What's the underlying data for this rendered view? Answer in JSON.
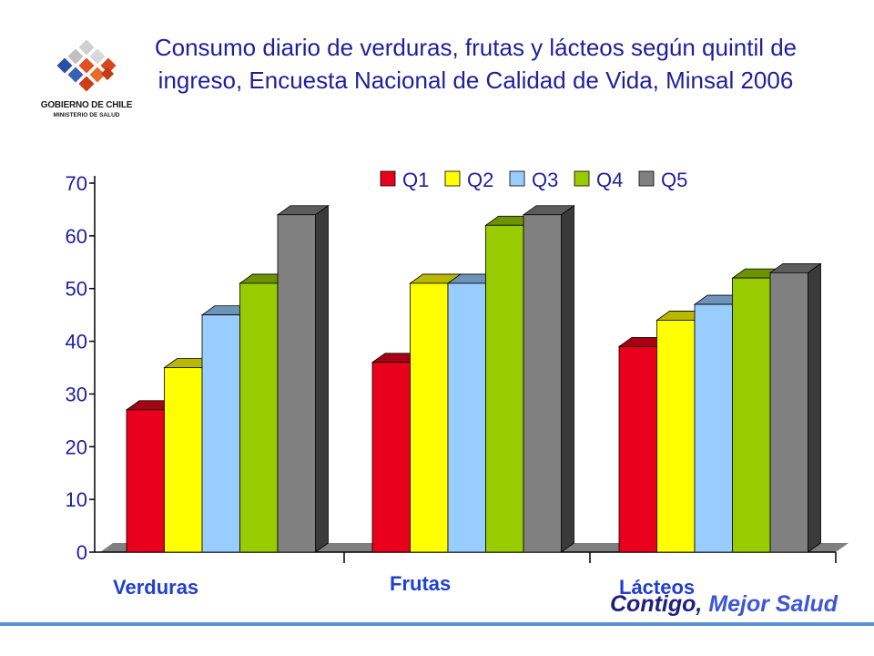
{
  "title": "Consumo diario de verduras, frutas y lácteos según quintil de ingreso, Encuesta Nacional de Calidad de Vida, Minsal 2006",
  "logo": {
    "line1": "GOBIERNO DE CHILE",
    "line2": "MINISTERIO DE SALUD"
  },
  "slogan": {
    "part1": "Contigo,",
    "part2": "Mejor Salud"
  },
  "chart_data": {
    "type": "bar",
    "title": "Consumo diario de verduras, frutas y lácteos según quintil de ingreso, Encuesta Nacional de Calidad de Vida, Minsal 2006",
    "categories": [
      "Verduras",
      "Frutas",
      "Lácteos"
    ],
    "series": [
      {
        "name": "Q1",
        "color": "#e8001c",
        "values": [
          27,
          36,
          39
        ]
      },
      {
        "name": "Q2",
        "color": "#ffff00",
        "values": [
          35,
          51,
          44
        ]
      },
      {
        "name": "Q3",
        "color": "#99ccff",
        "values": [
          45,
          51,
          47
        ]
      },
      {
        "name": "Q4",
        "color": "#99cc00",
        "values": [
          51,
          62,
          52
        ]
      },
      {
        "name": "Q5",
        "color": "#808080",
        "values": [
          64,
          64,
          53
        ]
      }
    ],
    "ylim": [
      0,
      70
    ],
    "yticks": [
      0,
      10,
      20,
      30,
      40,
      50,
      60,
      70
    ],
    "legend": "top-right",
    "grid": false,
    "style": "3d-clustered"
  }
}
